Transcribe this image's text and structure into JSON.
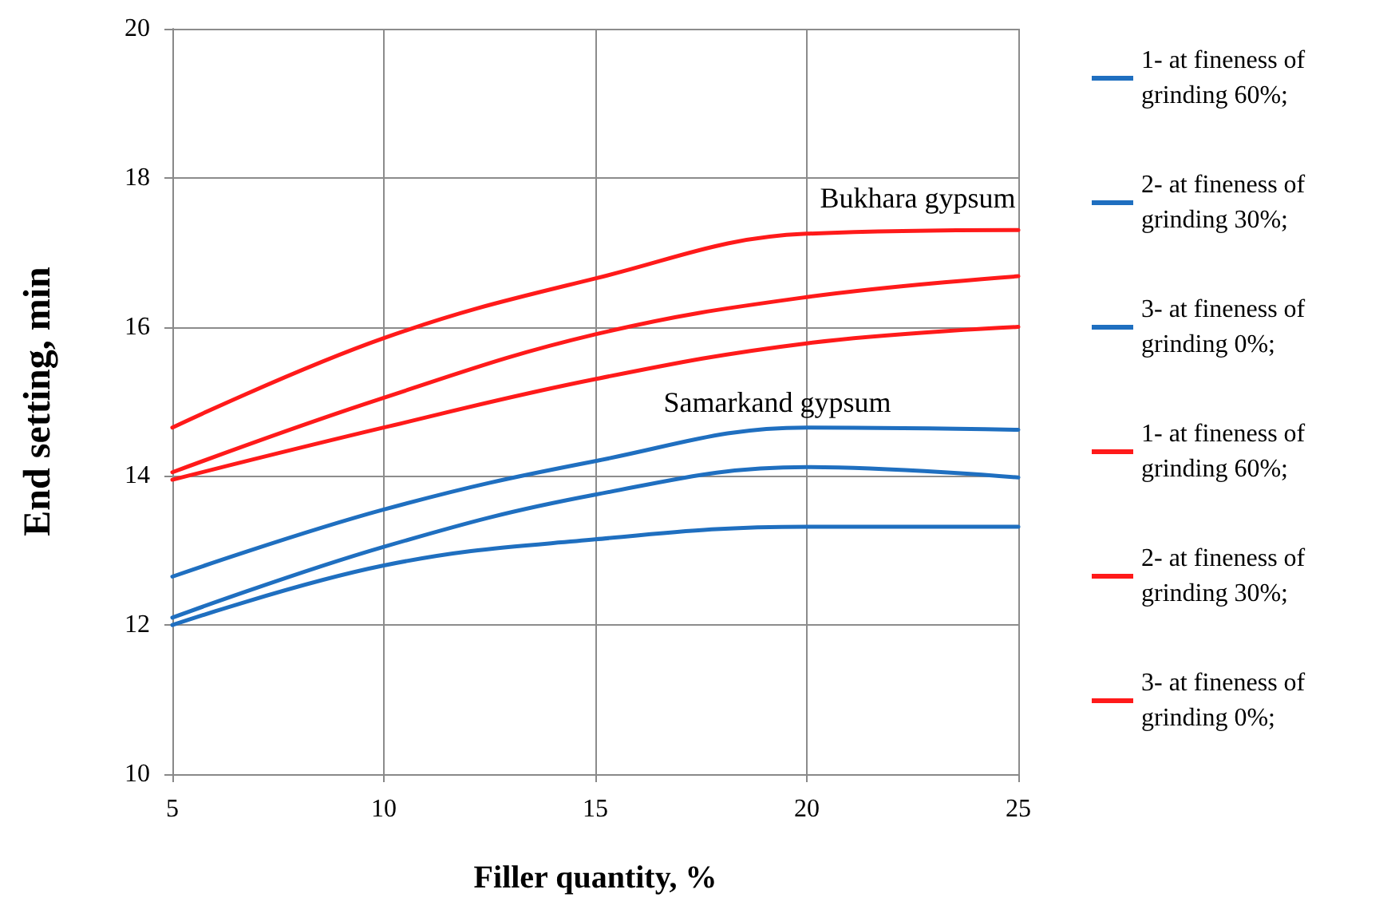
{
  "chart_data": {
    "type": "line",
    "xlabel": "Filler quantity, %",
    "ylabel": "End setting, min",
    "x": [
      5,
      10,
      15,
      20,
      25
    ],
    "series": [
      {
        "name": "1- at fineness of grinding 60%;",
        "color": "#1f6fc0",
        "values": [
          12.65,
          13.55,
          14.2,
          14.65,
          14.62
        ]
      },
      {
        "name": "2- at fineness of grinding 30%;",
        "color": "#1f6fc0",
        "values": [
          12.1,
          13.05,
          13.75,
          14.12,
          13.98
        ]
      },
      {
        "name": "3- at fineness of grinding 0%;",
        "color": "#1f6fc0",
        "values": [
          12.0,
          12.8,
          13.15,
          13.32,
          13.32
        ]
      },
      {
        "name": "1- at fineness of grinding 60%;",
        "color": "#ff1a1a",
        "values": [
          14.65,
          15.85,
          16.65,
          17.25,
          17.3
        ]
      },
      {
        "name": "2- at fineness of grinding 30%;",
        "color": "#ff1a1a",
        "values": [
          14.05,
          15.05,
          15.9,
          16.4,
          16.68
        ]
      },
      {
        "name": "3- at fineness of grinding 0%;",
        "color": "#ff1a1a",
        "values": [
          13.95,
          14.65,
          15.3,
          15.78,
          16.0
        ]
      }
    ],
    "annotations": [
      "Bukhara gypsum",
      "Samarkand gypsum"
    ],
    "xlim": [
      5,
      25
    ],
    "xticks": [
      5,
      10,
      15,
      20,
      25
    ],
    "ylim": [
      10,
      20
    ],
    "yticks": [
      10,
      12,
      14,
      16,
      18,
      20
    ],
    "grid": true,
    "legend": "right",
    "marker": "none",
    "line_style": "solid"
  }
}
